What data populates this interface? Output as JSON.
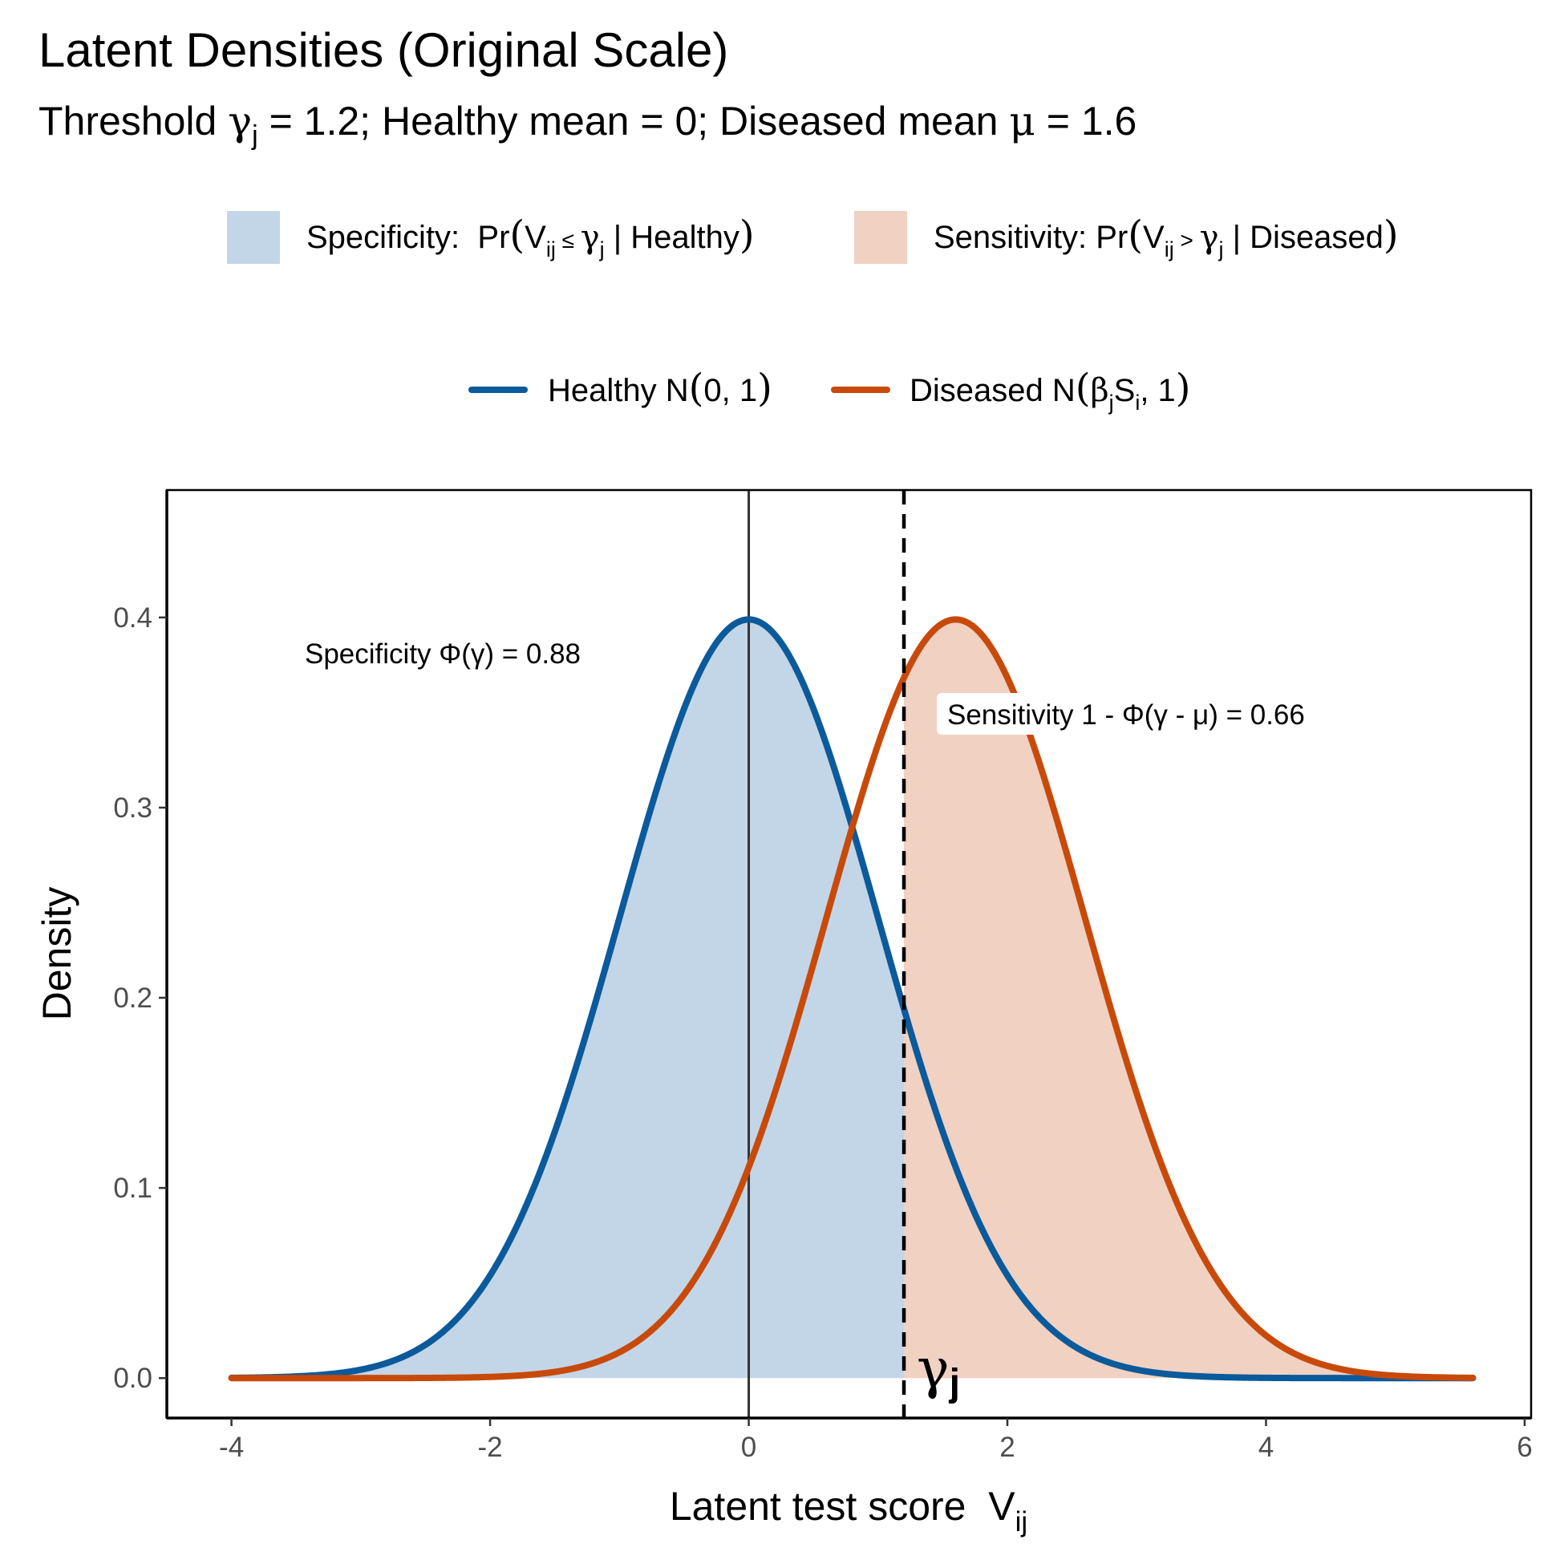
{
  "chart_data": {
    "type": "area",
    "title": "Latent Densities (Original Scale)",
    "subtitle": {
      "prefix": "Threshold ",
      "gamma_symbol": "γ",
      "gamma_sub": "j",
      "mid": " = 1.2; Healthy mean = 0; Diseased mean ",
      "mu_symbol": "μ",
      "suffix": " = 1.6"
    },
    "xlabel": {
      "text": "Latent test score  V",
      "sub": "ij"
    },
    "ylabel": "Density",
    "xlim": [
      -4.5,
      6.05
    ],
    "ylim": [
      -0.021,
      0.467
    ],
    "x_ticks": [
      -4,
      -2,
      0,
      2,
      4,
      6
    ],
    "y_ticks": [
      0.0,
      0.1,
      0.2,
      0.3,
      0.4
    ],
    "x_tick_labels": [
      "-4",
      "-2",
      "0",
      "2",
      "4",
      "6"
    ],
    "y_tick_labels": [
      "0.0",
      "0.1",
      "0.2",
      "0.3",
      "0.4"
    ],
    "grid": false,
    "legend_placement": "top",
    "threshold": 1.2,
    "healthy_mean": 0,
    "diseased_mean": 1.6,
    "sd": 1,
    "x_range": [
      -4,
      5.6
    ],
    "colors": {
      "healthy": "#0b5a9b",
      "diseased": "#c84a0a",
      "healthy_fill": "#c3d6e8",
      "diseased_fill": "#f1d1c2",
      "threshold_line": "#000000",
      "zero_line": "#333333"
    },
    "series": [
      {
        "name": "Healthy N(0, 1)",
        "distribution": "normal",
        "mean": 0,
        "sd": 1
      },
      {
        "name": "Diseased N(βjSi, 1)",
        "distribution": "normal",
        "mean": 1.6,
        "sd": 1
      }
    ],
    "fill_legend": [
      {
        "label": "Specificity:  Pr(Vij ≤ γj | Healthy)"
      },
      {
        "label": "Sensitivity: Pr(Vij > γj | Diseased)"
      }
    ],
    "line_legend": [
      {
        "label": "Healthy N(0, 1)"
      },
      {
        "label": "Diseased N(βjSi, 1)"
      }
    ],
    "annotations": {
      "specificity": "Specificity  Φ(γ) = 0.88",
      "sensitivity": "Sensitivity  1 - Φ(γ - μ) = 0.66",
      "gamma_label": {
        "symbol": "γ",
        "sub": "j"
      }
    }
  }
}
